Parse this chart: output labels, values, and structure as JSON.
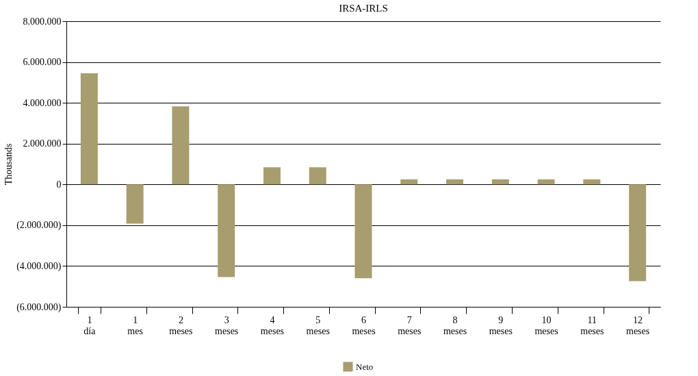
{
  "chart_data": {
    "type": "bar",
    "title": "IRSA-IRLS",
    "ylabel": "Thousands",
    "categories": [
      "1 día",
      "1 mes",
      "2 meses",
      "3 meses",
      "4 meses",
      "5 meses",
      "6 meses",
      "7 meses",
      "8 meses",
      "9 meses",
      "10 meses",
      "11 meses",
      "12 meses"
    ],
    "series": [
      {
        "name": "Neto",
        "color": "#a89d6e",
        "values": [
          5450000,
          -1920000,
          3830000,
          -4540000,
          840000,
          840000,
          -4600000,
          250000,
          250000,
          250000,
          250000,
          250000,
          -4740000
        ]
      }
    ],
    "ylim": [
      -6000000,
      8000000
    ],
    "yticks": [
      {
        "value": -6000000,
        "label": "(6.000.000)"
      },
      {
        "value": -4000000,
        "label": "(4.000.000)"
      },
      {
        "value": -2000000,
        "label": "(2.000.000)"
      },
      {
        "value": 0,
        "label": "0"
      },
      {
        "value": 2000000,
        "label": "2.000.000"
      },
      {
        "value": 4000000,
        "label": "4.000.000"
      },
      {
        "value": 6000000,
        "label": "6.000.000"
      },
      {
        "value": 8000000,
        "label": "8.000.000"
      }
    ],
    "grid": "y",
    "legend": "bottom"
  }
}
